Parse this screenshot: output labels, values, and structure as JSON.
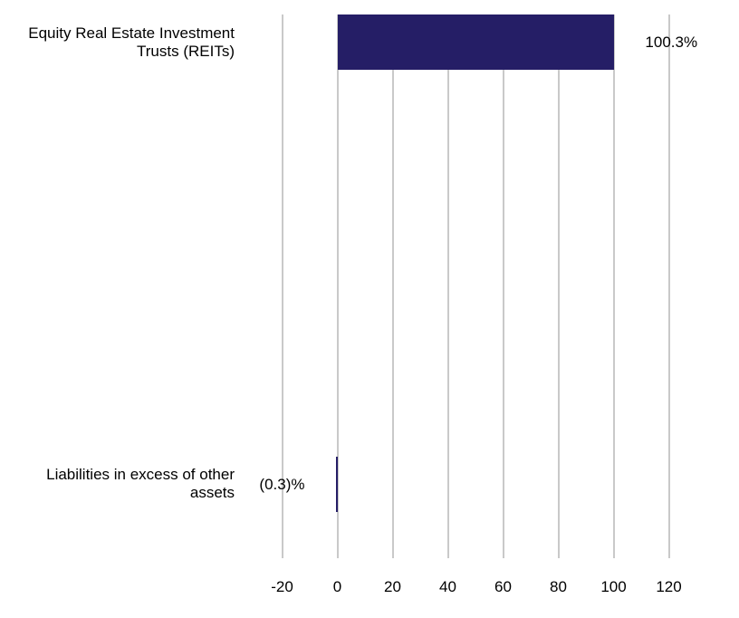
{
  "chart_data": {
    "type": "bar",
    "orientation": "horizontal",
    "title": "",
    "xlabel": "",
    "ylabel": "",
    "categories": [
      "Equity Real Estate Investment Trusts (REITs)",
      "Liabilities in excess of other assets"
    ],
    "values": [
      100.3,
      -0.3
    ],
    "value_labels": [
      "100.3%",
      "(0.3)%"
    ],
    "x_ticks": [
      -20,
      0,
      20,
      40,
      60,
      80,
      100,
      120
    ],
    "x_tick_labels": [
      "-20",
      "0",
      "20",
      "40",
      "60",
      "80",
      "100",
      "120"
    ],
    "xlim": [
      -20,
      120
    ],
    "grid": "vertical",
    "legend": "none",
    "colors": {
      "bar": "#251E66",
      "gridline": "#C9C9C9",
      "text": "#000000",
      "background": "#FFFFFF"
    }
  }
}
